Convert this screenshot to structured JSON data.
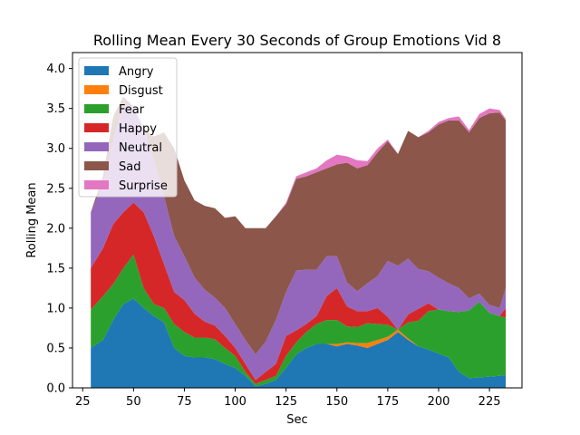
{
  "chart_data": {
    "type": "area",
    "title": "Rolling Mean Every 30 Seconds of Group Emotions Vid 8",
    "xlabel": "Sec",
    "ylabel": "Rolling Mean",
    "xlim": [
      20,
      241
    ],
    "ylim": [
      0,
      4.2
    ],
    "x_ticks": [
      25,
      50,
      75,
      100,
      125,
      150,
      175,
      200,
      225
    ],
    "y_ticks": [
      0.0,
      0.5,
      1.0,
      1.5,
      2.0,
      2.5,
      3.0,
      3.5,
      4.0
    ],
    "x_tick_labels": [
      "25",
      "50",
      "75",
      "100",
      "125",
      "150",
      "175",
      "200",
      "225"
    ],
    "y_tick_labels": [
      "0.0",
      "0.5",
      "1.0",
      "1.5",
      "2.0",
      "2.5",
      "3.0",
      "3.5",
      "4.0"
    ],
    "grid": false,
    "legend_position": "upper-left",
    "stacked": true,
    "x": [
      29,
      35,
      40,
      45,
      50,
      55,
      60,
      65,
      70,
      75,
      80,
      85,
      90,
      95,
      100,
      105,
      110,
      115,
      120,
      125,
      130,
      135,
      140,
      145,
      150,
      155,
      160,
      165,
      170,
      175,
      180,
      185,
      190,
      195,
      200,
      205,
      210,
      215,
      220,
      225,
      230,
      233
    ],
    "series": [
      {
        "name": "Angry",
        "color": "#1f77b4",
        "values": [
          0.5,
          0.6,
          0.85,
          1.05,
          1.12,
          1.0,
          0.9,
          0.82,
          0.5,
          0.4,
          0.38,
          0.38,
          0.36,
          0.3,
          0.25,
          0.15,
          0.02,
          0.05,
          0.1,
          0.25,
          0.42,
          0.5,
          0.55,
          0.55,
          0.52,
          0.55,
          0.53,
          0.5,
          0.55,
          0.6,
          0.7,
          0.6,
          0.52,
          0.48,
          0.43,
          0.38,
          0.2,
          0.12,
          0.13,
          0.14,
          0.15,
          0.16
        ]
      },
      {
        "name": "Disgust",
        "color": "#ff7f0e",
        "values": [
          0,
          0,
          0,
          0,
          0,
          0,
          0,
          0,
          0,
          0,
          0,
          0,
          0,
          0,
          0,
          0,
          0,
          0,
          0,
          0,
          0,
          0,
          0,
          0,
          0.03,
          0.02,
          0.03,
          0.06,
          0.05,
          0.04,
          0.03,
          0.02,
          0,
          0,
          0,
          0,
          0,
          0,
          0,
          0,
          0,
          0
        ]
      },
      {
        "name": "Fear",
        "color": "#2ca02c",
        "values": [
          0.48,
          0.55,
          0.45,
          0.45,
          0.55,
          0.25,
          0.15,
          0.18,
          0.3,
          0.3,
          0.25,
          0.25,
          0.25,
          0.2,
          0.15,
          0.05,
          0.03,
          0.05,
          0.05,
          0.15,
          0.15,
          0.2,
          0.25,
          0.3,
          0.3,
          0.2,
          0.2,
          0.25,
          0.2,
          0.15,
          0.0,
          0.2,
          0.32,
          0.48,
          0.55,
          0.58,
          0.75,
          0.85,
          0.95,
          0.8,
          0.75,
          0.72
        ]
      },
      {
        "name": "Happy",
        "color": "#d62728",
        "values": [
          0.52,
          0.6,
          0.75,
          0.7,
          0.65,
          0.95,
          0.85,
          0.55,
          0.4,
          0.4,
          0.3,
          0.2,
          0.17,
          0.15,
          0.1,
          0.1,
          0.05,
          0.1,
          0.15,
          0.25,
          0.15,
          0.1,
          0.1,
          0.3,
          0.4,
          0.25,
          0.2,
          0.15,
          0.2,
          0.1,
          0.0,
          0.1,
          0.15,
          0.1,
          0.0,
          0.0,
          0.0,
          0.0,
          0.0,
          0.0,
          0.0,
          0.12
        ]
      },
      {
        "name": "Neutral",
        "color": "#9467bd",
        "values": [
          0.7,
          0.8,
          1.05,
          1.35,
          1.2,
          1.05,
          0.95,
          0.85,
          0.7,
          0.55,
          0.45,
          0.4,
          0.35,
          0.35,
          0.3,
          0.3,
          0.32,
          0.38,
          0.55,
          0.55,
          0.75,
          0.68,
          0.58,
          0.5,
          0.4,
          0.3,
          0.25,
          0.35,
          0.4,
          0.7,
          0.8,
          0.7,
          0.5,
          0.4,
          0.4,
          0.35,
          0.3,
          0.15,
          0.1,
          0.1,
          0.1,
          0.25
        ]
      },
      {
        "name": "Sad",
        "color": "#8c564b",
        "values": [
          0.0,
          0.1,
          0.3,
          0.1,
          0.0,
          0.0,
          0.3,
          0.8,
          1.1,
          0.95,
          0.97,
          1.05,
          1.12,
          1.13,
          1.35,
          1.4,
          1.58,
          1.42,
          1.3,
          1.1,
          1.15,
          1.17,
          1.22,
          1.1,
          1.15,
          1.5,
          1.54,
          1.48,
          1.55,
          1.5,
          1.4,
          1.6,
          1.65,
          1.74,
          1.92,
          2.04,
          2.1,
          2.08,
          2.2,
          2.4,
          2.45,
          2.1
        ]
      },
      {
        "name": "Surprise",
        "color": "#e377c2",
        "values": [
          0,
          0,
          0,
          0,
          0,
          0,
          0,
          0,
          0,
          0,
          0,
          0,
          0,
          0,
          0,
          0,
          0,
          0,
          0,
          0.02,
          0.03,
          0.05,
          0.05,
          0.1,
          0.12,
          0.08,
          0.1,
          0.05,
          0.05,
          0.02,
          0,
          0,
          0,
          0.02,
          0.03,
          0.03,
          0.05,
          0.03,
          0.05,
          0.06,
          0.03,
          0.02
        ]
      }
    ]
  }
}
